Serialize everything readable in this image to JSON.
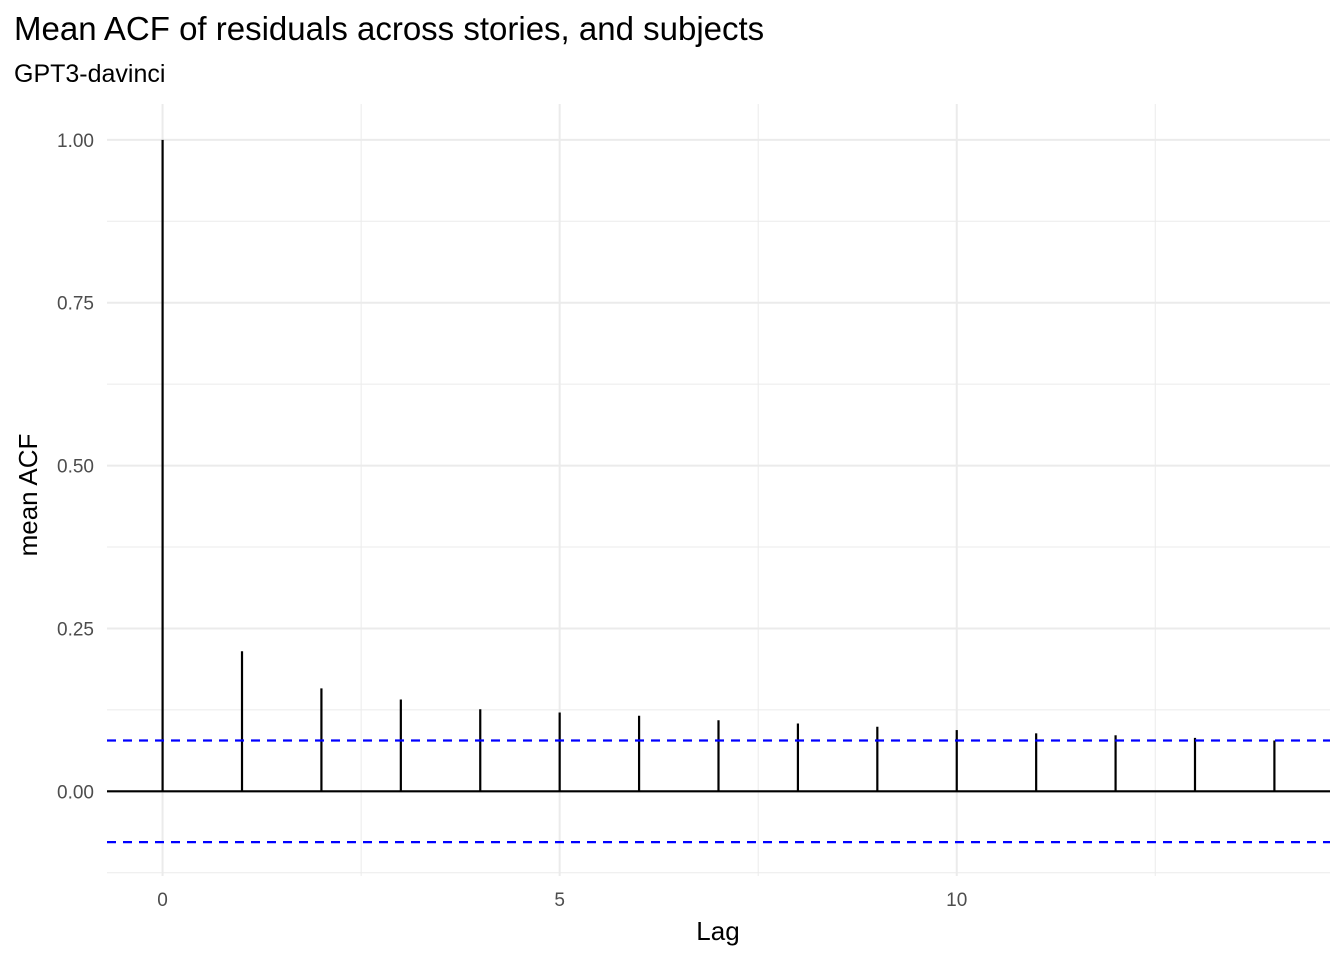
{
  "chart_data": {
    "type": "bar",
    "title": "Mean ACF of residuals across stories, and subjects",
    "subtitle": "GPT3-davinci",
    "xlabel": "Lag",
    "ylabel": "mean ACF",
    "x": [
      0,
      1,
      2,
      3,
      4,
      5,
      6,
      7,
      8,
      9,
      10,
      11,
      12,
      13,
      14
    ],
    "values": [
      1.0,
      0.215,
      0.158,
      0.141,
      0.126,
      0.121,
      0.116,
      0.109,
      0.104,
      0.099,
      0.094,
      0.089,
      0.086,
      0.082,
      0.078
    ],
    "confidence_bounds": [
      0.078,
      -0.078
    ],
    "xlim": [
      -0.7,
      14.7
    ],
    "ylim": [
      -0.13,
      1.055
    ],
    "x_ticks": [
      0,
      5,
      10
    ],
    "x_tick_labels": [
      "0",
      "5",
      "10"
    ],
    "y_ticks": [
      0,
      0.25,
      0.5,
      0.75,
      1.0
    ],
    "y_tick_labels": [
      "0.00",
      "0.25",
      "0.50",
      "0.75",
      "1.00"
    ],
    "grid": true,
    "colors": {
      "bars": "#000000",
      "confidence": "#0000ff",
      "grid": "#ebebeb",
      "zero_line": "#000000"
    }
  }
}
